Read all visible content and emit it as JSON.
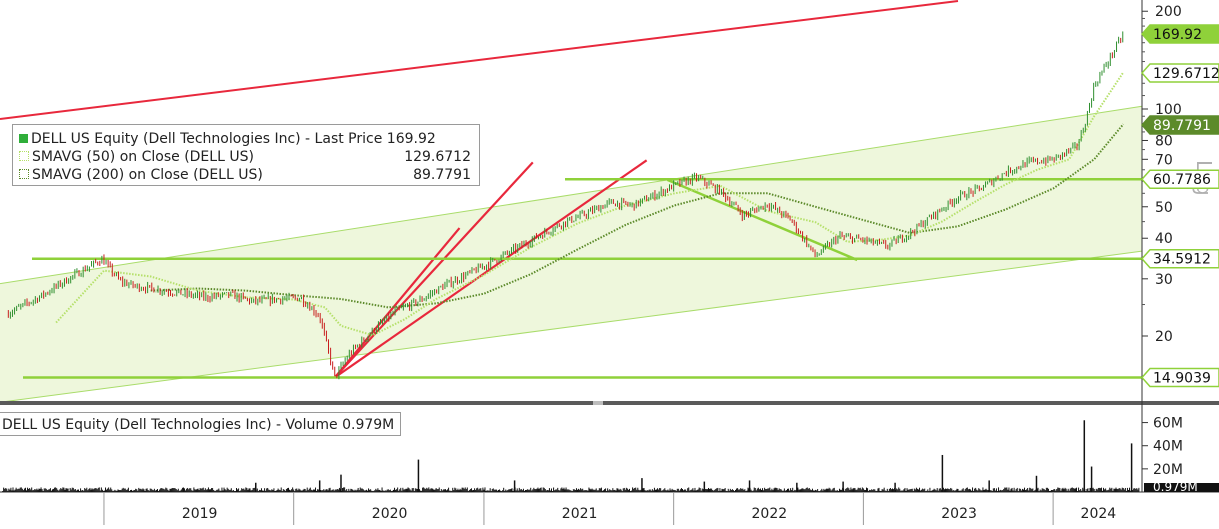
{
  "colors": {
    "price_up": "#2f8f2f",
    "price_down": "#c81e1e",
    "sma50": "#b5e06a",
    "sma200": "#5c8a2a",
    "red_lines": "#e8283c",
    "green_levels": "#8fd13a",
    "channel_fill": "#eef7dc",
    "channel_edge": "#a9dc6a",
    "volume": "#111111",
    "label_green": "#8fd13a",
    "label_dark": "#5c8a2a"
  },
  "legend": {
    "price_label": "DELL US Equity (Dell Technologies Inc) - Last Price",
    "price_value": "169.92",
    "sma50_label": "SMAVG (50)  on Close (DELL US)",
    "sma50_value": "129.6712",
    "sma200_label": "SMAVG (200)  on Close (DELL US)",
    "sma200_value": "89.7791"
  },
  "volume_legend": {
    "label": "DELL US Equity (Dell Technologies Inc) - Volume",
    "value": "0.979M"
  },
  "scale_label": "Log",
  "chart_data": [
    {
      "type": "line",
      "scale": "log",
      "x_ticks": [
        "2019",
        "2020",
        "2021",
        "2022",
        "2023",
        "2024"
      ],
      "y_ticks": [
        20,
        30,
        40,
        50,
        60,
        70,
        80,
        100,
        200
      ],
      "y_tick_labels": [
        "20",
        "30",
        "40",
        "50",
        "60",
        "70",
        "80",
        "100",
        "200"
      ],
      "price_tags": [
        {
          "value": "169.92",
          "series": "price"
        },
        {
          "value": "129.6712",
          "series": "sma50"
        },
        {
          "value": "89.7791",
          "series": "sma200"
        },
        {
          "value": "60.7786",
          "series": "level"
        },
        {
          "value": "34.5912",
          "series": "level"
        },
        {
          "value": "14.9039",
          "series": "level"
        }
      ],
      "horizontal_levels": [
        60.7786,
        34.5912,
        14.9039
      ],
      "series": [
        {
          "name": "DELL US Equity (Dell Technologies Inc) - Last Price",
          "x": [
            "2018-07-01",
            "2018-09-01",
            "2018-11-01",
            "2018-12-28",
            "2019-02-01",
            "2019-03-01",
            "2019-04-15",
            "2019-06-01",
            "2019-07-15",
            "2019-09-01",
            "2019-10-15",
            "2019-12-01",
            "2020-01-15",
            "2020-02-20",
            "2020-03-20",
            "2020-04-15",
            "2020-06-01",
            "2020-07-15",
            "2020-09-01",
            "2020-10-15",
            "2020-12-01",
            "2021-01-15",
            "2021-03-01",
            "2021-04-15",
            "2021-06-01",
            "2021-07-15",
            "2021-09-01",
            "2021-10-15",
            "2021-12-01",
            "2022-01-03",
            "2022-02-15",
            "2022-04-01",
            "2022-05-15",
            "2022-07-01",
            "2022-08-15",
            "2022-10-01",
            "2022-11-15",
            "2023-01-01",
            "2023-02-15",
            "2023-04-01",
            "2023-05-15",
            "2023-07-01",
            "2023-08-15",
            "2023-10-01",
            "2023-11-15",
            "2024-01-02",
            "2024-02-15",
            "2024-03-01",
            "2024-03-20",
            "2024-05-15"
          ],
          "y": [
            23.5,
            26.5,
            30.5,
            34.5,
            29.5,
            28.5,
            27.8,
            27.0,
            26.3,
            26.8,
            25.5,
            26.0,
            26.2,
            23.0,
            14.9,
            17.5,
            20.8,
            23.8,
            25.8,
            28.5,
            31.0,
            33.8,
            37.0,
            40.5,
            44.5,
            47.5,
            51.5,
            50.5,
            54.8,
            58.2,
            61.5,
            55.8,
            47.0,
            51.0,
            45.5,
            35.2,
            40.5,
            39.5,
            37.8,
            41.5,
            47.0,
            53.5,
            57.0,
            63.8,
            68.5,
            70.0,
            76.5,
            88.5,
            118.0,
            169.92
          ]
        },
        {
          "name": "SMAVG (50) on Close (DELL US)",
          "x": [
            "2018-10-01",
            "2019-01-01",
            "2019-04-01",
            "2019-07-01",
            "2019-10-01",
            "2020-01-01",
            "2020-03-01",
            "2020-04-01",
            "2020-06-01",
            "2020-08-01",
            "2020-10-01",
            "2021-01-01",
            "2021-04-01",
            "2021-07-01",
            "2021-10-01",
            "2022-01-03",
            "2022-04-01",
            "2022-07-01",
            "2022-10-01",
            "2022-12-01",
            "2023-02-01",
            "2023-04-01",
            "2023-06-01",
            "2023-08-01",
            "2023-10-01",
            "2023-12-01",
            "2024-02-01",
            "2024-03-20",
            "2024-05-15"
          ],
          "y": [
            22.0,
            31.8,
            30.5,
            27.6,
            26.3,
            25.9,
            24.5,
            21.5,
            20.1,
            22.5,
            26.0,
            30.8,
            37.5,
            44.5,
            50.5,
            55.0,
            58.0,
            48.5,
            44.8,
            39.0,
            39.5,
            40.8,
            45.0,
            51.5,
            58.5,
            65.0,
            70.0,
            95.0,
            129.6712
          ]
        },
        {
          "name": "SMAVG (200) on Close (DELL US)",
          "x": [
            "2019-04-01",
            "2019-07-01",
            "2019-10-01",
            "2020-01-01",
            "2020-04-01",
            "2020-07-01",
            "2020-10-01",
            "2021-01-01",
            "2021-04-01",
            "2021-07-01",
            "2021-10-01",
            "2022-01-03",
            "2022-04-01",
            "2022-07-01",
            "2022-10-01",
            "2023-01-01",
            "2023-04-01",
            "2023-07-01",
            "2023-10-01",
            "2024-01-02",
            "2024-03-20",
            "2024-05-15"
          ],
          "y": [
            27.6,
            28.0,
            27.6,
            26.7,
            26.0,
            24.5,
            25.2,
            27.0,
            31.0,
            37.0,
            44.0,
            50.5,
            55.0,
            55.0,
            50.0,
            45.5,
            41.5,
            43.5,
            49.0,
            57.0,
            70.0,
            89.7791
          ]
        }
      ]
    },
    {
      "type": "bar",
      "y_tick_labels": [
        "20M",
        "40M",
        "60M"
      ],
      "y_ticks": [
        20,
        40,
        60
      ],
      "unit": "M",
      "last_value": "0.979M",
      "spikes": [
        {
          "x": "2019-10-20",
          "y": 8
        },
        {
          "x": "2020-02-20",
          "y": 10
        },
        {
          "x": "2020-04-01",
          "y": 15
        },
        {
          "x": "2020-08-28",
          "y": 28
        },
        {
          "x": "2021-03-01",
          "y": 10
        },
        {
          "x": "2021-11-01",
          "y": 12
        },
        {
          "x": "2022-03-01",
          "y": 9
        },
        {
          "x": "2022-05-27",
          "y": 10
        },
        {
          "x": "2022-08-26",
          "y": 8
        },
        {
          "x": "2022-11-23",
          "y": 9
        },
        {
          "x": "2023-03-03",
          "y": 8
        },
        {
          "x": "2023-06-02",
          "y": 32
        },
        {
          "x": "2023-08-31",
          "y": 10
        },
        {
          "x": "2023-11-30",
          "y": 14
        },
        {
          "x": "2024-03-01",
          "y": 62
        },
        {
          "x": "2024-03-15",
          "y": 22
        },
        {
          "x": "2024-05-31",
          "y": 42
        }
      ]
    }
  ]
}
